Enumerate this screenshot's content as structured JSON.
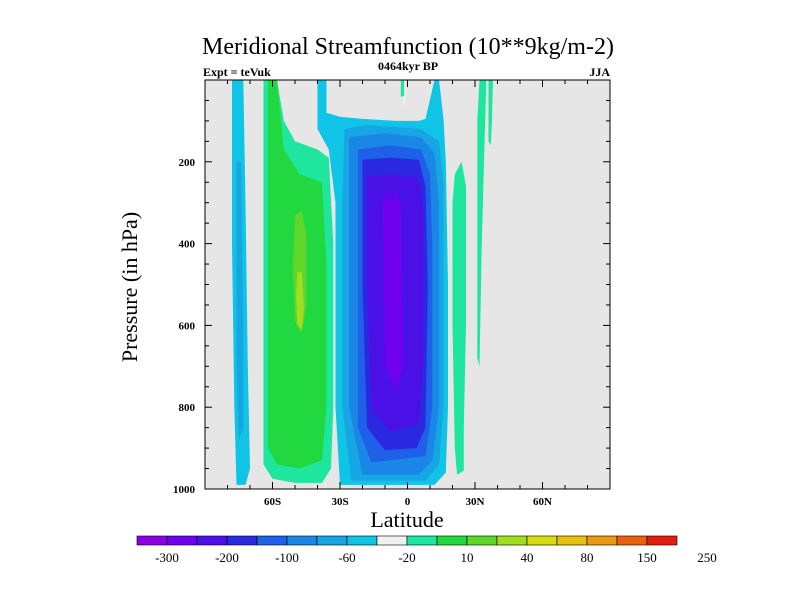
{
  "chart_data": {
    "type": "heatmap",
    "title": "Meridional Streamfunction (10**9kg/m-2)",
    "subtitle_left": "Expt = teVuk",
    "subtitle_center": "0464kyr BP",
    "subtitle_right": "JJA",
    "xlabel": "Latitude",
    "ylabel": "Pressure (in hPa)",
    "xlim": [
      -90,
      90
    ],
    "ylim": [
      1000,
      0
    ],
    "x_ticks": [
      {
        "value": -60,
        "label": "60S"
      },
      {
        "value": -30,
        "label": "30S"
      },
      {
        "value": 0,
        "label": "0"
      },
      {
        "value": 30,
        "label": "30N"
      },
      {
        "value": 60,
        "label": "60N"
      }
    ],
    "y_ticks": [
      {
        "value": 200,
        "label": "200"
      },
      {
        "value": 400,
        "label": "400"
      },
      {
        "value": 600,
        "label": "600"
      },
      {
        "value": 800,
        "label": "800"
      },
      {
        "value": 1000,
        "label": "1000"
      }
    ],
    "background_color": "#e6e6e6",
    "colorbar": {
      "colors": [
        "#8a00e0",
        "#7000f0",
        "#4a10e6",
        "#2a28e0",
        "#1e60e8",
        "#1a86e6",
        "#16a6e4",
        "#10c4e6",
        "#f0f0f0",
        "#1ee69e",
        "#22d840",
        "#5fd62a",
        "#a0de20",
        "#d8dc10",
        "#e6c010",
        "#e89a10",
        "#e86010",
        "#e21c10"
      ],
      "labels": [
        {
          "after_box": 1,
          "text": "-300"
        },
        {
          "after_box": 3,
          "text": "-200"
        },
        {
          "after_box": 5,
          "text": "-100"
        },
        {
          "after_box": 7,
          "text": "-60"
        },
        {
          "after_box": 9,
          "text": "-20"
        },
        {
          "after_box": 11,
          "text": "10"
        },
        {
          "after_box": 13,
          "text": "40"
        },
        {
          "after_box": 15,
          "text": "80"
        },
        {
          "after_box": 17,
          "text": "150"
        },
        {
          "after_box": 19,
          "text": "250"
        }
      ]
    },
    "regions": [
      {
        "name": "southern-polar-cell",
        "color": "#10c4e6",
        "points": [
          [
            -78,
            0
          ],
          [
            -73,
            0
          ],
          [
            -72,
            300
          ],
          [
            -71,
            700
          ],
          [
            -70,
            950
          ],
          [
            -72,
            990
          ],
          [
            -76,
            990
          ],
          [
            -77,
            800
          ],
          [
            -78,
            400
          ]
        ]
      },
      {
        "name": "southern-polar-cell-core",
        "color": "#16a6e4",
        "points": [
          [
            -76,
            200
          ],
          [
            -74,
            200
          ],
          [
            -73,
            600
          ],
          [
            -73,
            850
          ],
          [
            -75,
            880
          ],
          [
            -76,
            700
          ]
        ]
      },
      {
        "name": "ferrel-cell-outer",
        "color": "#1ee69e",
        "points": [
          [
            -64,
            0
          ],
          [
            -58,
            0
          ],
          [
            -55,
            100
          ],
          [
            -50,
            150
          ],
          [
            -40,
            170
          ],
          [
            -35,
            190
          ],
          [
            -33,
            400
          ],
          [
            -33,
            800
          ],
          [
            -34,
            950
          ],
          [
            -38,
            985
          ],
          [
            -50,
            985
          ],
          [
            -60,
            975
          ],
          [
            -64,
            940
          ],
          [
            -64,
            400
          ]
        ]
      },
      {
        "name": "ferrel-cell",
        "color": "#22d840",
        "points": [
          [
            -62,
            0
          ],
          [
            -58,
            0
          ],
          [
            -55,
            170
          ],
          [
            -48,
            230
          ],
          [
            -38,
            250
          ],
          [
            -36,
            450
          ],
          [
            -36,
            800
          ],
          [
            -38,
            930
          ],
          [
            -48,
            950
          ],
          [
            -58,
            940
          ],
          [
            -62,
            900
          ],
          [
            -62,
            400
          ]
        ]
      },
      {
        "name": "ferrel-cell-core",
        "color": "#5fd62a",
        "points": [
          [
            -50,
            330
          ],
          [
            -47,
            320
          ],
          [
            -45,
            380
          ],
          [
            -45,
            550
          ],
          [
            -47,
            620
          ],
          [
            -50,
            590
          ],
          [
            -51,
            460
          ]
        ]
      },
      {
        "name": "ferrel-cell-max",
        "color": "#a0de20",
        "points": [
          [
            -49,
            470
          ],
          [
            -47,
            470
          ],
          [
            -46,
            560
          ],
          [
            -47,
            610
          ],
          [
            -49,
            600
          ],
          [
            -49.5,
            530
          ]
        ]
      },
      {
        "name": "hadley-cell-outer",
        "color": "#10c4e6",
        "points": [
          [
            -40,
            0
          ],
          [
            -36,
            0
          ],
          [
            -36,
            80
          ],
          [
            -30,
            90
          ],
          [
            -20,
            95
          ],
          [
            -5,
            100
          ],
          [
            5,
            100
          ],
          [
            8,
            95
          ],
          [
            12,
            0
          ],
          [
            14,
            0
          ],
          [
            16,
            95
          ],
          [
            17,
            200
          ],
          [
            18,
            500
          ],
          [
            18,
            800
          ],
          [
            17,
            960
          ],
          [
            12,
            990
          ],
          [
            -30,
            990
          ],
          [
            -32,
            800
          ],
          [
            -32,
            300
          ],
          [
            -35,
            170
          ],
          [
            -40,
            120
          ]
        ]
      },
      {
        "name": "hadley-cell-l1",
        "color": "#16a6e4",
        "points": [
          [
            -28,
            120
          ],
          [
            -18,
            110
          ],
          [
            -5,
            115
          ],
          [
            6,
            120
          ],
          [
            14,
            150
          ],
          [
            16,
            250
          ],
          [
            16,
            800
          ],
          [
            14,
            940
          ],
          [
            8,
            980
          ],
          [
            -25,
            980
          ],
          [
            -29,
            800
          ],
          [
            -29,
            300
          ]
        ]
      },
      {
        "name": "hadley-cell-l2",
        "color": "#1a86e6",
        "points": [
          [
            -26,
            140
          ],
          [
            -10,
            130
          ],
          [
            6,
            140
          ],
          [
            12,
            180
          ],
          [
            14,
            300
          ],
          [
            14,
            800
          ],
          [
            11,
            930
          ],
          [
            5,
            965
          ],
          [
            -20,
            965
          ],
          [
            -26,
            800
          ],
          [
            -26,
            300
          ]
        ]
      },
      {
        "name": "hadley-cell-l3",
        "color": "#1e60e8",
        "points": [
          [
            -22,
            170
          ],
          [
            -8,
            160
          ],
          [
            6,
            170
          ],
          [
            10,
            230
          ],
          [
            11,
            400
          ],
          [
            11,
            800
          ],
          [
            8,
            920
          ],
          [
            -16,
            935
          ],
          [
            -22,
            850
          ],
          [
            -22,
            300
          ]
        ]
      },
      {
        "name": "hadley-cell-l4",
        "color": "#2a28e0",
        "points": [
          [
            -20,
            195
          ],
          [
            -8,
            190
          ],
          [
            5,
            195
          ],
          [
            8,
            260
          ],
          [
            9,
            500
          ],
          [
            8,
            850
          ],
          [
            4,
            900
          ],
          [
            -10,
            905
          ],
          [
            -18,
            850
          ],
          [
            -20,
            500
          ]
        ]
      },
      {
        "name": "hadley-cell-l5",
        "color": "#4a10e6",
        "points": [
          [
            -18,
            235
          ],
          [
            -6,
            230
          ],
          [
            5,
            240
          ],
          [
            7,
            320
          ],
          [
            7,
            700
          ],
          [
            5,
            840
          ],
          [
            -8,
            860
          ],
          [
            -16,
            800
          ],
          [
            -18,
            500
          ]
        ]
      },
      {
        "name": "hadley-cell-core",
        "color": "#7000f0",
        "points": [
          [
            -11,
            300
          ],
          [
            -9,
            275
          ],
          [
            -7,
            300
          ],
          [
            -5,
            270
          ],
          [
            -3,
            310
          ],
          [
            -2,
            700
          ],
          [
            -5,
            760
          ],
          [
            -10,
            700
          ]
        ]
      },
      {
        "name": "subtropical-streak-outer",
        "color": "#f0f0f0",
        "points": [
          [
            -2,
            0
          ],
          [
            -1,
            0
          ],
          [
            -1,
            60
          ],
          [
            -2,
            60
          ]
        ]
      },
      {
        "name": "subtropical-streak",
        "color": "#1ee69e",
        "points": [
          [
            -3,
            0
          ],
          [
            -1.5,
            0
          ],
          [
            -1.5,
            40
          ],
          [
            -3,
            40
          ]
        ]
      },
      {
        "name": "nh-tropical-cell",
        "color": "#1ee69e",
        "points": [
          [
            21,
            230
          ],
          [
            24,
            200
          ],
          [
            26,
            260
          ],
          [
            26,
            600
          ],
          [
            25,
            850
          ],
          [
            25,
            955
          ],
          [
            22,
            965
          ],
          [
            21,
            900
          ],
          [
            20,
            600
          ],
          [
            20,
            300
          ]
        ]
      },
      {
        "name": "nh-midlatitude-cell",
        "color": "#1ee69e",
        "points": [
          [
            32,
            0
          ],
          [
            35,
            0
          ],
          [
            34,
            200
          ],
          [
            33,
            400
          ],
          [
            32,
            700
          ],
          [
            31,
            680
          ],
          [
            31,
            400
          ],
          [
            31,
            100
          ]
        ]
      },
      {
        "name": "nh-midlatitude-cell-2",
        "color": "#1ee69e",
        "points": [
          [
            36,
            0
          ],
          [
            38,
            0
          ],
          [
            37.5,
            100
          ],
          [
            37,
            160
          ],
          [
            36,
            150
          ],
          [
            36,
            50
          ]
        ]
      }
    ]
  }
}
